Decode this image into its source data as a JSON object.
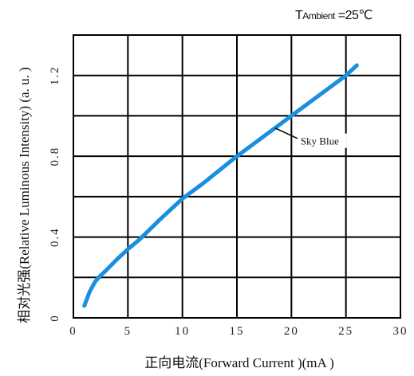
{
  "condition": {
    "prefix": "T",
    "subscript": "Ambient",
    "value": " =25℃"
  },
  "chart_data": {
    "type": "line",
    "xlabel": "正向电流(Forward  Current )(mA )",
    "ylabel": "相对光强(Relative Luminous  Intensity) (a. u. )",
    "xlim": [
      0,
      30
    ],
    "ylim": [
      0,
      1.4
    ],
    "xticks": [
      "0",
      "5",
      "10",
      "15",
      "20",
      "25",
      "30"
    ],
    "yticks": [
      "0",
      "0.4",
      "0.8",
      "1.2"
    ],
    "grid": true,
    "series": [
      {
        "name": "Sky Blue",
        "color": "#1a8fe0",
        "x": [
          1,
          1.5,
          2,
          2.5,
          3,
          4,
          5,
          6,
          8,
          10,
          12,
          15,
          18,
          20,
          22,
          25,
          26
        ],
        "y": [
          0.06,
          0.13,
          0.18,
          0.21,
          0.235,
          0.29,
          0.34,
          0.385,
          0.49,
          0.59,
          0.67,
          0.8,
          0.92,
          1.0,
          1.08,
          1.2,
          1.25
        ]
      }
    ]
  }
}
